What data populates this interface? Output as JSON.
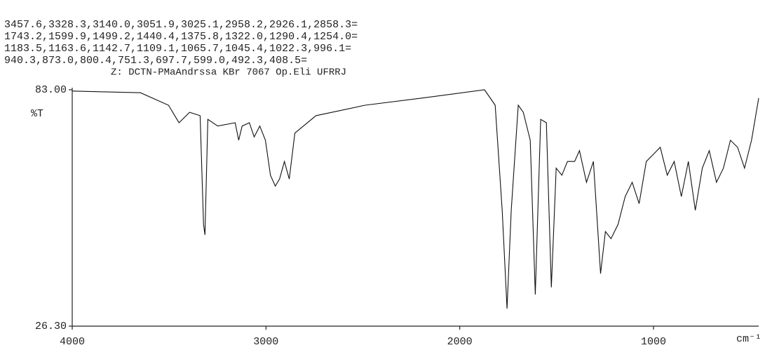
{
  "chart_data": {
    "type": "line",
    "peak_list": [
      "3457.6,3328.3,3140.0,3051.9,3025.1,2958.2,2926.1,2858.3=",
      "1743.2,1599.9,1499.2,1440.4,1375.8,1322.0,1290.4,1254.0=",
      "1183.5,1163.6,1142.7,1109.1,1065.7,1045.4,1022.3,996.1=",
      "940.3,873.0,800.4,751.3,697.7,599.0,492.3,408.5="
    ],
    "subtitle": "Z: DCTN-PMaAndrssa  KBr  7067   Op.Eli  UFRRJ",
    "ylabel": "%T",
    "xlabel": "cm⁻¹",
    "color": "#111111",
    "xlim": [
      4000,
      457
    ],
    "ylim": [
      26.3,
      83.0
    ],
    "yticks": [
      {
        "value": 83.0,
        "label": "83.00"
      },
      {
        "value": 26.3,
        "label": "26.30"
      }
    ],
    "xticks": [
      4000,
      3000,
      2000,
      1000
    ],
    "x": [
      4000,
      3648,
      3503,
      3449,
      3394,
      3340,
      3322,
      3315,
      3300,
      3249,
      3159,
      3141,
      3123,
      3086,
      3061,
      3032,
      3003,
      2977,
      2952,
      2930,
      2905,
      2880,
      2851,
      2742,
      2488,
      2198,
      1872,
      1817,
      1781,
      1756,
      1734,
      1698,
      1672,
      1636,
      1610,
      1582,
      1553,
      1527,
      1502,
      1473,
      1444,
      1407,
      1382,
      1346,
      1310,
      1273,
      1248,
      1219,
      1183,
      1146,
      1110,
      1074,
      1037,
      1001,
      965,
      929,
      893,
      856,
      820,
      784,
      748,
      712,
      675,
      639,
      603,
      566,
      530,
      494,
      457
    ],
    "values": [
      82.7,
      82.3,
      79.3,
      75.1,
      77.6,
      76.8,
      50.7,
      48.2,
      75.9,
      74.3,
      75.1,
      70.9,
      74.3,
      75.1,
      71.7,
      74.3,
      70.9,
      62.5,
      59.9,
      61.6,
      65.8,
      61.6,
      72.6,
      76.8,
      79.3,
      81.0,
      83.0,
      79.3,
      54.1,
      30.5,
      54.1,
      79.3,
      77.6,
      70.9,
      33.9,
      75.9,
      75.1,
      35.6,
      64.2,
      62.5,
      65.8,
      65.8,
      68.4,
      60.8,
      65.8,
      38.9,
      49.0,
      47.3,
      50.7,
      57.4,
      60.8,
      55.7,
      65.8,
      67.5,
      69.2,
      62.5,
      65.8,
      57.4,
      65.8,
      54.1,
      64.2,
      68.4,
      60.8,
      64.2,
      70.9,
      69.2,
      64.2,
      70.9,
      81.0
    ]
  }
}
